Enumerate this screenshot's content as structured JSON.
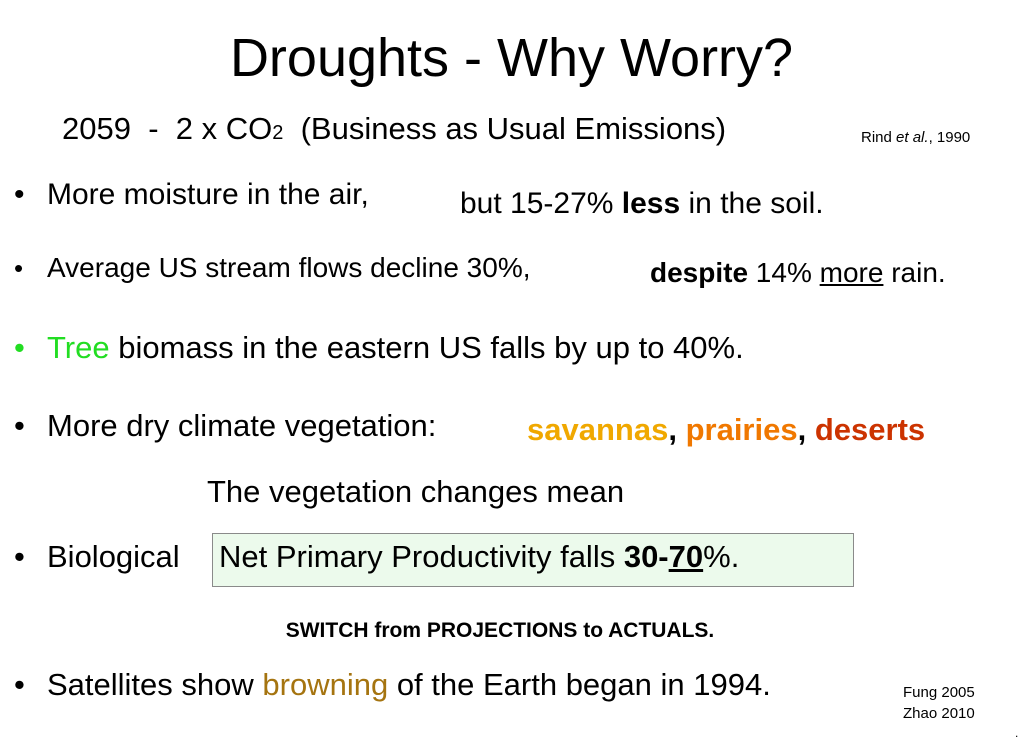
{
  "title": "Droughts - Why Worry?",
  "subtitle": {
    "year": "2059",
    "sep": "-",
    "lead": "2 x CO",
    "subscript": "2",
    "rest": "(Business as Usual Emissions)",
    "cite_name": "Rind ",
    "cite_etal": "et al.",
    "cite_year": ", 1990"
  },
  "bullet_symbol": "•",
  "bullets": {
    "moisture": {
      "text": "More moisture in the air,",
      "tail_pre": "but 15-27% ",
      "tail_bold": "less",
      "tail_post": " in the soil."
    },
    "streams": {
      "text": "Average US stream flows decline 30%,",
      "tail_bold": "despite",
      "tail_mid": " 14% ",
      "tail_under": "more",
      "tail_post": " rain."
    },
    "tree": {
      "highlight": "Tree",
      "text": " biomass in the eastern US falls by up to 40%."
    },
    "vegetation": {
      "text": "More dry climate vegetation:",
      "savannas": "savannas",
      "comma1": ",",
      "prairies": "prairies",
      "comma2": ",",
      "deserts": "deserts"
    },
    "veg_note": "The vegetation changes mean",
    "npp": {
      "lead": "Biological",
      "boxed": "Net Primary Productivity falls ",
      "bold_a": "30-",
      "bold_under": "70",
      "post": "%."
    },
    "switch_note": "SWITCH from PROJECTIONS to ACTUALS.",
    "satellites": {
      "pre": "Satellites show ",
      "browning": "browning",
      "post": " of the Earth began in 1994."
    }
  },
  "citations": {
    "fung": "Fung 2005",
    "zhao": "Zhao 2010"
  },
  "corner_mark": ".",
  "colors": {
    "tree_green": "#22dd22",
    "savannas": "#f0a800",
    "prairies": "#f07800",
    "deserts": "#cc3300",
    "browning": "#a57410",
    "npp_box": "#ecfaec"
  }
}
